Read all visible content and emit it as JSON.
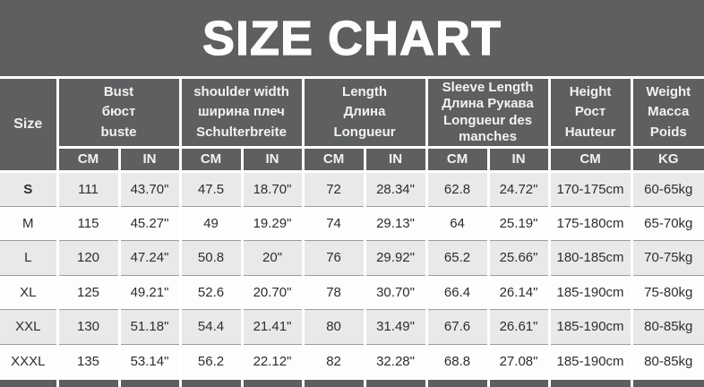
{
  "palette": {
    "header_background": "#5d5f61",
    "header_text": "#f2f2f2",
    "row_alt_background": "#e9e9e9",
    "row_background": "#fdfdfd",
    "body_text": "#2d2d2d",
    "grid_white": "#ffffff",
    "row_hairline": "#9c9c9c"
  },
  "chart_data": {
    "type": "table",
    "title": "SIZE CHART",
    "size_column_header": "Size",
    "column_groups": [
      {
        "label": "Bust\nбюст\nbuste",
        "units": [
          "CM",
          "IN"
        ]
      },
      {
        "label": "shoulder width\nширина плеч\nSchulterbreite",
        "units": [
          "CM",
          "IN"
        ]
      },
      {
        "label": "Length\nДлина\nLongueur",
        "units": [
          "CM",
          "IN"
        ]
      },
      {
        "label": "Sleeve Length\nДлина Рукава\nLongueur des manches",
        "units": [
          "CM",
          "IN"
        ]
      },
      {
        "label": "Height\nРост\nHauteur",
        "units": [
          "CM"
        ]
      },
      {
        "label": "Weight\nМасса\nPoids",
        "units": [
          "KG"
        ]
      }
    ],
    "rows": [
      {
        "size": "S",
        "values": [
          "111",
          "43.70\"",
          "47.5",
          "18.70\"",
          "72",
          "28.34\"",
          "62.8",
          "24.72\"",
          "170-175cm",
          "60-65kg"
        ]
      },
      {
        "size": "M",
        "values": [
          "115",
          "45.27\"",
          "49",
          "19.29\"",
          "74",
          "29.13\"",
          "64",
          "25.19\"",
          "175-180cm",
          "65-70kg"
        ]
      },
      {
        "size": "L",
        "values": [
          "120",
          "47.24\"",
          "50.8",
          "20\"",
          "76",
          "29.92\"",
          "65.2",
          "25.66\"",
          "180-185cm",
          "70-75kg"
        ]
      },
      {
        "size": "XL",
        "values": [
          "125",
          "49.21\"",
          "52.6",
          "20.70\"",
          "78",
          "30.70\"",
          "66.4",
          "26.14\"",
          "185-190cm",
          "75-80kg"
        ]
      },
      {
        "size": "XXL",
        "values": [
          "130",
          "51.18\"",
          "54.4",
          "21.41\"",
          "80",
          "31.49\"",
          "67.6",
          "26.61\"",
          "185-190cm",
          "80-85kg"
        ]
      },
      {
        "size": "XXXL",
        "values": [
          "135",
          "53.14\"",
          "56.2",
          "22.12\"",
          "82",
          "32.28\"",
          "68.8",
          "27.08\"",
          "185-190cm",
          "80-85kg"
        ]
      }
    ]
  }
}
